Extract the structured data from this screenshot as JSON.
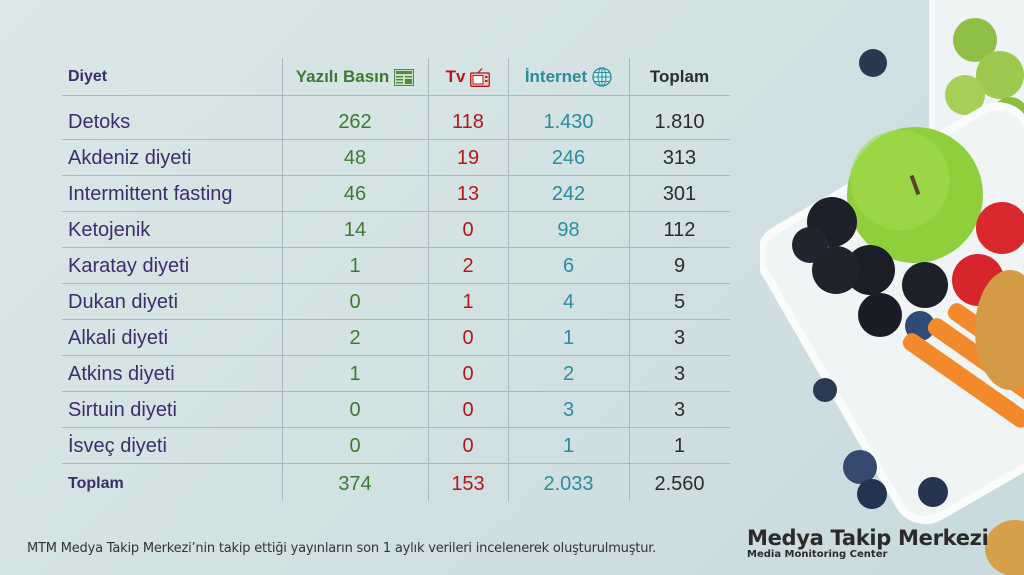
{
  "header": {
    "col_diet": "Diyet",
    "col_print": "Yazılı Basın",
    "col_tv": "Tv",
    "col_internet": "İnternet",
    "col_total": "Toplam",
    "icons": {
      "print": "newspaper-icon",
      "tv": "tv-icon",
      "internet": "globe-icon"
    }
  },
  "rows": [
    {
      "diet": "Detoks",
      "print": "262",
      "tv": "118",
      "internet": "1.430",
      "total": "1.810"
    },
    {
      "diet": "Akdeniz diyeti",
      "print": "48",
      "tv": "19",
      "internet": "246",
      "total": "313"
    },
    {
      "diet": "Intermittent fasting",
      "print": "46",
      "tv": "13",
      "internet": "242",
      "total": "301"
    },
    {
      "diet": "Ketojenik",
      "print": "14",
      "tv": "0",
      "internet": "98",
      "total": "112"
    },
    {
      "diet": "Karatay diyeti",
      "print": "1",
      "tv": "2",
      "internet": "6",
      "total": "9"
    },
    {
      "diet": "Dukan diyeti",
      "print": "0",
      "tv": "1",
      "internet": "4",
      "total": "5"
    },
    {
      "diet": "Alkali diyeti",
      "print": "2",
      "tv": "0",
      "internet": "1",
      "total": "3"
    },
    {
      "diet": "Atkins diyeti",
      "print": "1",
      "tv": "0",
      "internet": "2",
      "total": "3"
    },
    {
      "diet": "Sirtuin diyeti",
      "print": "0",
      "tv": "0",
      "internet": "3",
      "total": "3"
    },
    {
      "diet": "İsveç diyeti",
      "print": "0",
      "tv": "0",
      "internet": "1",
      "total": "1"
    }
  ],
  "totals": {
    "label": "Toplam",
    "print": "374",
    "tv": "153",
    "internet": "2.033",
    "total": "2.560"
  },
  "footnote": "MTM Medya Takip Merkezi’nin takip ettiği yayınların son 1 aylık verileri incelenerek oluşturulmuştur.",
  "brand": {
    "title": "Medya Takip Merkezi",
    "subtitle": "Media Monitoring Center"
  },
  "colors": {
    "print": "#3c7a32",
    "tv": "#b3181c",
    "internet": "#2a8c9c",
    "diet": "#3b2d6b",
    "total": "#2c2c2c"
  }
}
